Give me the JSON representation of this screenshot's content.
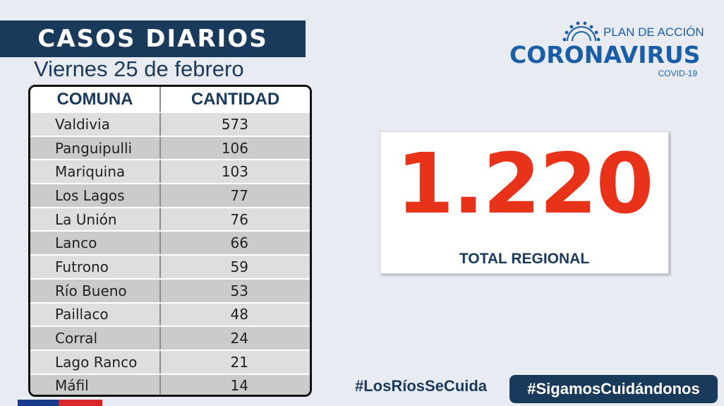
{
  "header": {
    "title": "CASOS DIARIOS",
    "date": "Viernes 25 de febrero"
  },
  "logo": {
    "plan": "PLAN DE ACCIÓN",
    "name": "CORONAVIRUS",
    "sub": "COVID-19",
    "icon": "sun-rays-icon"
  },
  "table": {
    "headers": [
      "COMUNA",
      "CANTIDAD"
    ],
    "rows": [
      {
        "comuna": "Valdivia",
        "cantidad": "573"
      },
      {
        "comuna": "Panguipulli",
        "cantidad": "106"
      },
      {
        "comuna": "Mariquina",
        "cantidad": "103"
      },
      {
        "comuna": "Los Lagos",
        "cantidad": "77"
      },
      {
        "comuna": "La Unión",
        "cantidad": "76"
      },
      {
        "comuna": "Lanco",
        "cantidad": "66"
      },
      {
        "comuna": "Futrono",
        "cantidad": "59"
      },
      {
        "comuna": "Río Bueno",
        "cantidad": "53"
      },
      {
        "comuna": "Paillaco",
        "cantidad": "48"
      },
      {
        "comuna": "Corral",
        "cantidad": "24"
      },
      {
        "comuna": "Lago Ranco",
        "cantidad": "21"
      },
      {
        "comuna": "Máfil",
        "cantidad": "14"
      }
    ]
  },
  "total": {
    "value": "1.220",
    "label": "TOTAL REGIONAL"
  },
  "hashtags": {
    "first": "#LosRíosSeCuida",
    "second": "#SigamosCuidándonos"
  },
  "colors": {
    "navy": "#1a3a5c",
    "accent_red": "#e8321a",
    "logo_blue": "#1a5ea8"
  }
}
